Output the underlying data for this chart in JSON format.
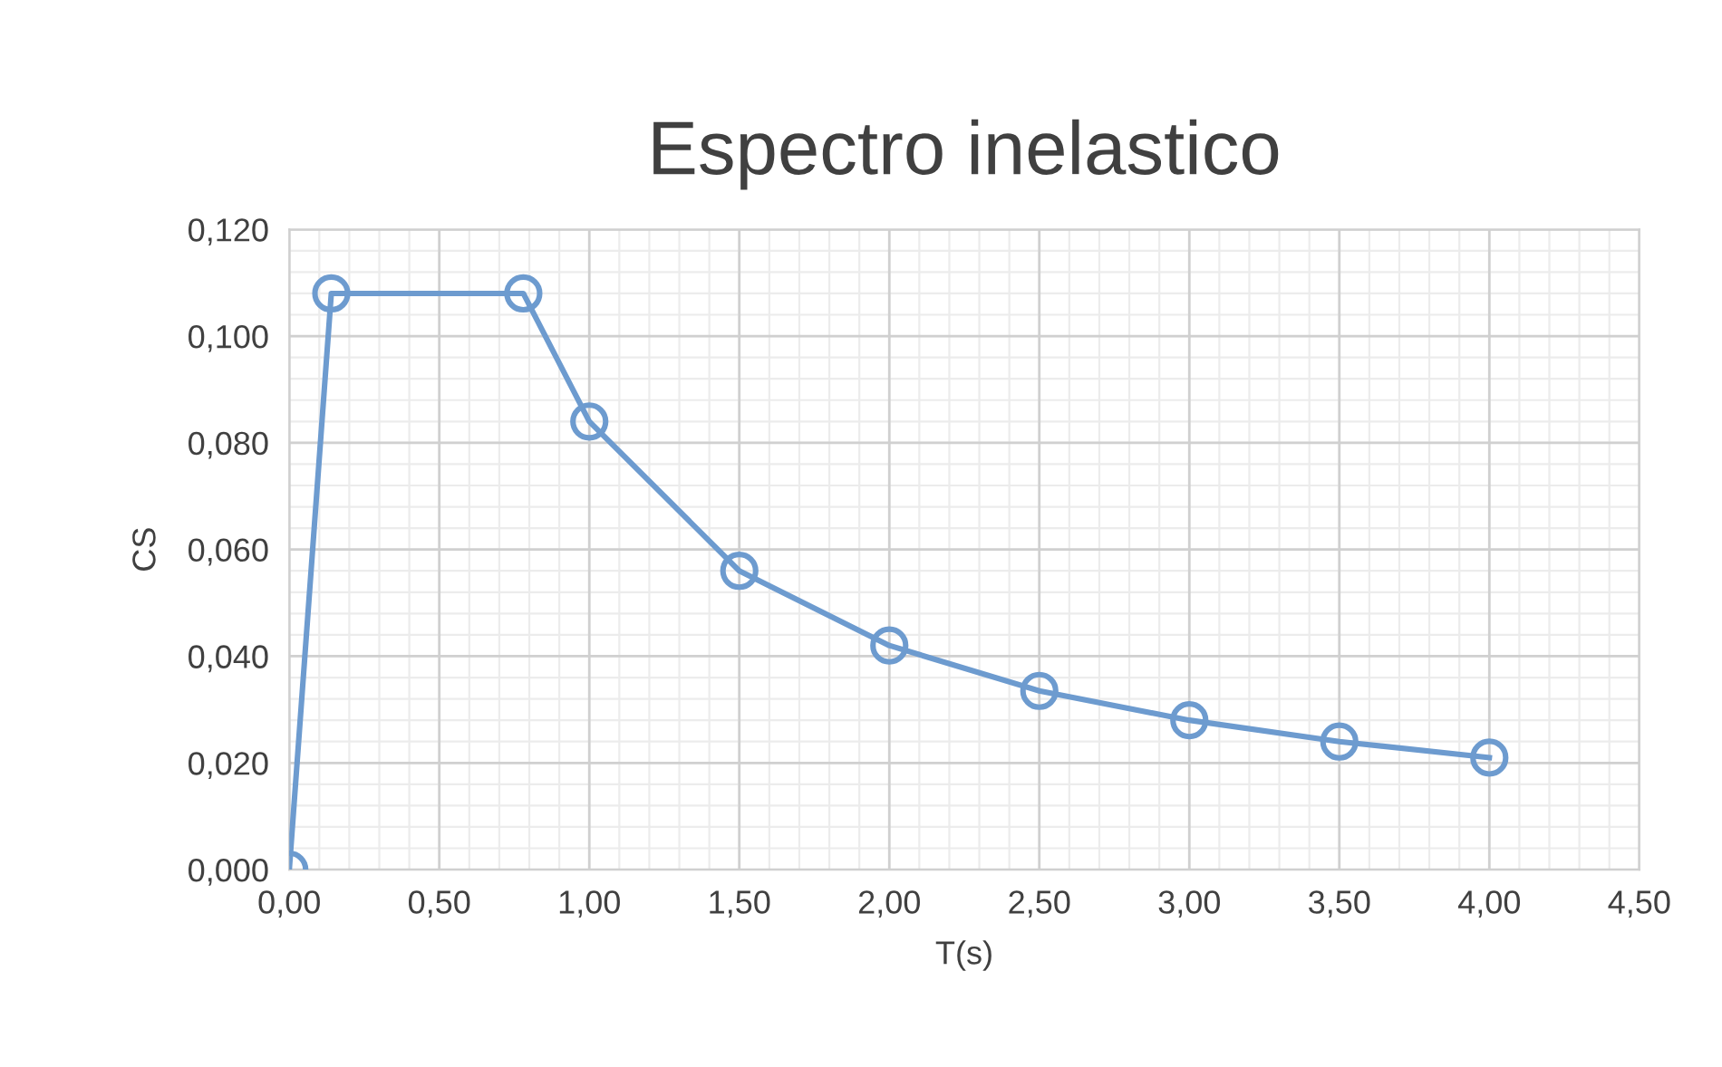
{
  "chart_data": {
    "type": "line",
    "title": "Espectro inelastico",
    "xlabel": "T(s)",
    "ylabel": "CS",
    "series": [
      {
        "color": "#6d9bcf",
        "x": [
          0,
          0.14,
          0.78,
          1.0,
          1.5,
          2.0,
          2.5,
          3.0,
          3.5,
          4.0
        ],
        "values": [
          0,
          0.108,
          0.108,
          0.084,
          0.056,
          0.042,
          0.0335,
          0.028,
          0.024,
          0.021
        ]
      }
    ],
    "xlim": [
      0,
      4.5
    ],
    "ylim": [
      0,
      0.12
    ],
    "xticks": [
      {
        "value": 0,
        "label": "0,00"
      },
      {
        "value": 0.5,
        "label": "0,50"
      },
      {
        "value": 1,
        "label": "1,00"
      },
      {
        "value": 1.5,
        "label": "1,50"
      },
      {
        "value": 2,
        "label": "2,00"
      },
      {
        "value": 2.5,
        "label": "2,50"
      },
      {
        "value": 3,
        "label": "3,00"
      },
      {
        "value": 3.5,
        "label": "3,50"
      },
      {
        "value": 4,
        "label": "4,00"
      },
      {
        "value": 4.5,
        "label": "4,50"
      }
    ],
    "yticks": [
      {
        "value": 0,
        "label": "0,000"
      },
      {
        "value": 0.02,
        "label": "0,020"
      },
      {
        "value": 0.04,
        "label": "0,040"
      },
      {
        "value": 0.06,
        "label": "0,060"
      },
      {
        "value": 0.08,
        "label": "0,080"
      },
      {
        "value": 0.1,
        "label": "0,100"
      },
      {
        "value": 0.12,
        "label": "0,120"
      }
    ],
    "grid": true,
    "marker": "circle",
    "line_style": "solid",
    "legend": false
  }
}
